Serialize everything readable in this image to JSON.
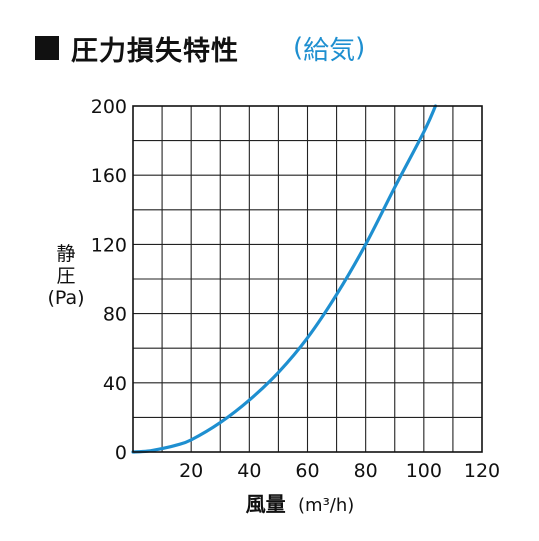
{
  "title": {
    "marker_icon": "black-square-icon",
    "text": "圧力損失特性",
    "subtitle_open": "(",
    "subtitle": "給気",
    "subtitle_close": ")"
  },
  "axis": {
    "y_label_line1": "静",
    "y_label_line2": "圧",
    "y_label_line3": "(Pa)",
    "x_label": "風量",
    "x_unit": "(m³/h)"
  },
  "chart_data": {
    "type": "line",
    "title": "圧力損失特性",
    "subtitle": "給気",
    "xlabel": "風量 (m³/h)",
    "ylabel": "静圧 (Pa)",
    "xlim": [
      0,
      120
    ],
    "ylim": [
      0,
      200
    ],
    "x_ticks": [
      "0",
      "20",
      "40",
      "60",
      "80",
      "100",
      "120"
    ],
    "y_ticks": [
      "0",
      "40",
      "80",
      "120",
      "160",
      "200"
    ],
    "x_minor_step": 10,
    "y_minor_step": 20,
    "grid": true,
    "series_color": "#1e8fd0",
    "series": [
      {
        "name": "",
        "x": [
          0,
          5,
          10,
          15,
          20,
          30,
          40,
          50,
          60,
          70,
          80,
          90,
          100,
          104
        ],
        "y": [
          0,
          0.5,
          2,
          4,
          7,
          17,
          30,
          46,
          66,
          91,
          120,
          153,
          185,
          200
        ]
      }
    ]
  }
}
